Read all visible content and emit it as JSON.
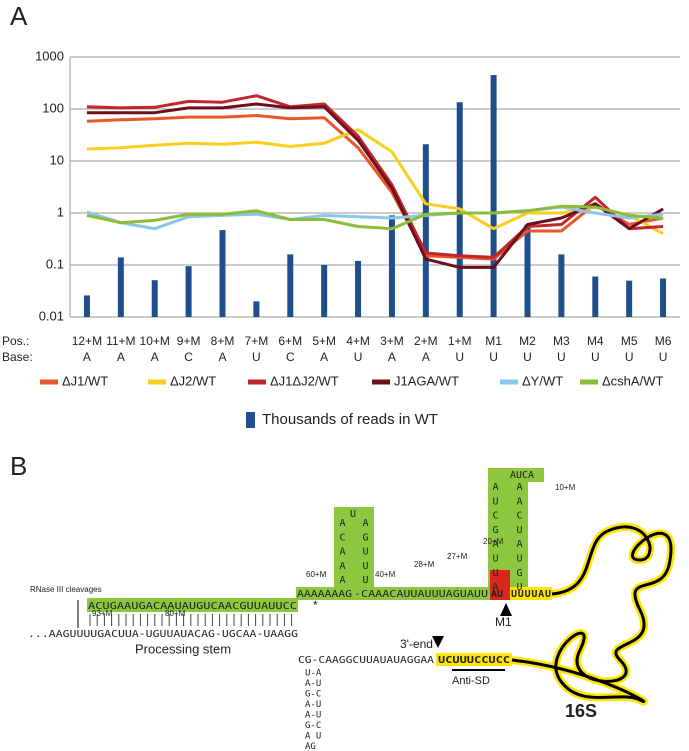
{
  "panel_labels": [
    "A",
    "B"
  ],
  "chart_data": {
    "type": "bar_line",
    "log_scale": true,
    "grid": true,
    "categories": [
      "12+M",
      "11+M",
      "10+M",
      "9+M",
      "8+M",
      "7+M",
      "6+M",
      "5+M",
      "4+M",
      "3+M",
      "2+M",
      "1+M",
      "M1",
      "M2",
      "M3",
      "M4",
      "M5",
      "M6"
    ],
    "position_label": "Pos.:",
    "base_label": "Base:",
    "bases": [
      "A",
      "A",
      "A",
      "C",
      "A",
      "U",
      "C",
      "A",
      "U",
      "A",
      "A",
      "U",
      "U",
      "U",
      "U",
      "U",
      "U",
      "U"
    ],
    "ylim": [
      0.01,
      1000
    ],
    "yticks": [
      0.01,
      0.1,
      1,
      10,
      100,
      1000
    ],
    "bar_series": {
      "name": "Thousands of reads in WT",
      "color": "#1f4e8c",
      "values": [
        0.026,
        0.14,
        0.051,
        0.095,
        0.47,
        0.02,
        0.16,
        0.1,
        0.12,
        0.9,
        21,
        135,
        450,
        0.6,
        0.16,
        0.06,
        0.05,
        0.055
      ]
    },
    "series": [
      {
        "name": "ΔJ1/WT",
        "color": "#e8572a",
        "values": [
          58,
          62,
          65,
          70,
          70,
          75,
          65,
          68,
          18,
          2.5,
          0.15,
          0.14,
          0.13,
          0.45,
          0.45,
          1.5,
          0.6,
          0.8
        ]
      },
      {
        "name": "ΔJ2/WT",
        "color": "#f7cf1e",
        "values": [
          17,
          18,
          20,
          22,
          21,
          23,
          19,
          22,
          40,
          15,
          1.5,
          1.2,
          0.5,
          1,
          1,
          1.3,
          0.9,
          0.4
        ]
      },
      {
        "name": "ΔJ1ΔJ2/WT",
        "color": "#c0262b",
        "values": [
          110,
          105,
          108,
          140,
          135,
          180,
          110,
          125,
          30,
          3.5,
          0.17,
          0.15,
          0.14,
          0.55,
          0.6,
          2,
          0.5,
          0.55
        ]
      },
      {
        "name": "J1AGA/WT",
        "color": "#6e0f1e",
        "values": [
          85,
          85,
          85,
          105,
          105,
          125,
          105,
          110,
          25,
          3,
          0.13,
          0.09,
          0.09,
          0.6,
          0.8,
          1.5,
          0.5,
          1.2
        ]
      },
      {
        "name": "ΔY/WT",
        "color": "#8cc6ea",
        "values": [
          1.05,
          0.65,
          0.5,
          0.85,
          0.9,
          0.95,
          0.75,
          0.9,
          0.85,
          0.8,
          0.9,
          1,
          1,
          1.1,
          1.3,
          1,
          0.8,
          0.95
        ]
      },
      {
        "name": "ΔcshA/WT",
        "color": "#8dbb3a",
        "values": [
          0.9,
          0.65,
          0.72,
          0.95,
          0.95,
          1.1,
          0.75,
          0.75,
          0.55,
          0.5,
          0.95,
          1,
          1,
          1.1,
          1.35,
          1.3,
          0.9,
          0.8
        ]
      }
    ]
  },
  "diagram": {
    "rnase": "RNase III cleavages",
    "upper_strand": "ACUGAAUGACAAUAUGUCAACGUUAUUCC",
    "lower_strand": "...AAGUUUUGACUUA-UGUUAUACAG-UGCAA-UAAGG",
    "processing_stem": "Processing stem",
    "linker": "AAAAAAAG",
    "star": "*",
    "hairpin1_top": "U",
    "hairpin1_left": "ACAAA",
    "hairpin1_right": "AGUUU",
    "middle": "-CAAACAUUAUUUAGUAUU",
    "hairpin2_top": "AUCA",
    "hairpin2_left": "AUCGAUUA",
    "hairpin2_right": "AACUAUGU",
    "red_part": "AU",
    "yellow_part": "UUUUAU",
    "lower_seq": "CG-CAAGGCUUAUAUAGGAA",
    "anti_sd_seq": "UCUUUCCUCC",
    "stem_rows": [
      "U-A",
      "A-U",
      "G-C",
      "A-U",
      "A-U",
      "G-C",
      "A   U",
      "AG"
    ],
    "pos_labels": [
      "93+M",
      "80+M",
      "60+M",
      "40+M",
      "28+M",
      "27+M",
      "20+M",
      "10+M"
    ],
    "m1": "M1",
    "three_end": "3'-end",
    "anti_sd": "Anti-SD",
    "s16": "16S"
  }
}
